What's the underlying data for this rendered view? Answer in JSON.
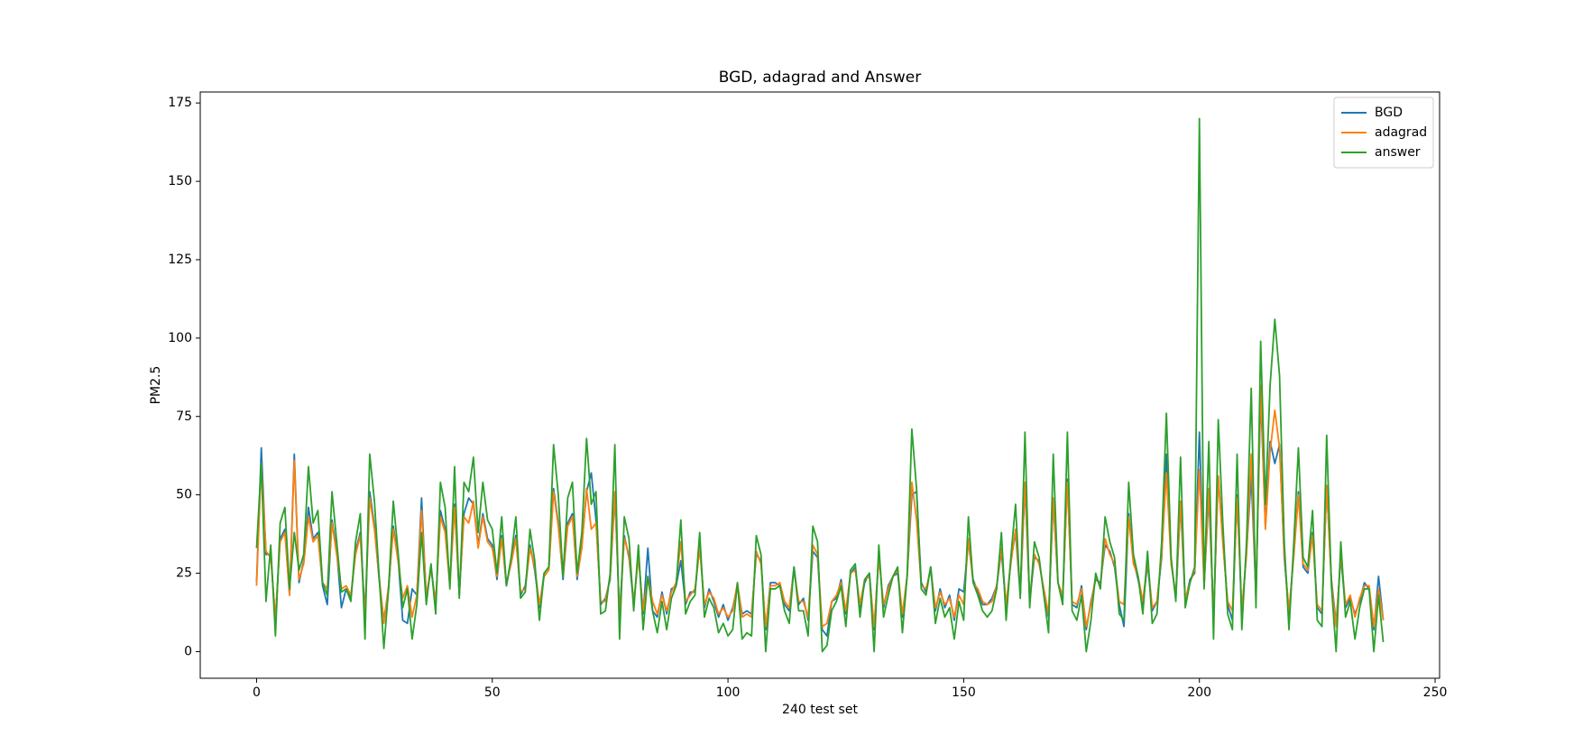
{
  "chart_data": {
    "type": "line",
    "title": "BGD, adagrad and Answer",
    "x_label": "240 test set",
    "y_label": "PM2.5",
    "xlim": [
      -11.95,
      250.95
    ],
    "ylim": [
      -8.5,
      178.5
    ],
    "xticks": [
      0,
      50,
      100,
      150,
      200,
      250
    ],
    "yticks": [
      0,
      25,
      50,
      75,
      100,
      125,
      150,
      175
    ],
    "legend": "upper right",
    "x": [
      0,
      1,
      2,
      3,
      4,
      5,
      6,
      7,
      8,
      9,
      10,
      11,
      12,
      13,
      14,
      15,
      16,
      17,
      18,
      19,
      20,
      21,
      22,
      23,
      24,
      25,
      26,
      27,
      28,
      29,
      30,
      31,
      32,
      33,
      34,
      35,
      36,
      37,
      38,
      39,
      40,
      41,
      42,
      43,
      44,
      45,
      46,
      47,
      48,
      49,
      50,
      51,
      52,
      53,
      54,
      55,
      56,
      57,
      58,
      59,
      60,
      61,
      62,
      63,
      64,
      65,
      66,
      67,
      68,
      69,
      70,
      71,
      72,
      73,
      74,
      75,
      76,
      77,
      78,
      79,
      80,
      81,
      82,
      83,
      84,
      85,
      86,
      87,
      88,
      89,
      90,
      91,
      92,
      93,
      94,
      95,
      96,
      97,
      98,
      99,
      100,
      101,
      102,
      103,
      104,
      105,
      106,
      107,
      108,
      109,
      110,
      111,
      112,
      113,
      114,
      115,
      116,
      117,
      118,
      119,
      120,
      121,
      122,
      123,
      124,
      125,
      126,
      127,
      128,
      129,
      130,
      131,
      132,
      133,
      134,
      135,
      136,
      137,
      138,
      139,
      140,
      141,
      142,
      143,
      144,
      145,
      146,
      147,
      148,
      149,
      150,
      151,
      152,
      153,
      154,
      155,
      156,
      157,
      158,
      159,
      160,
      161,
      162,
      163,
      164,
      165,
      166,
      167,
      168,
      169,
      170,
      171,
      172,
      173,
      174,
      175,
      176,
      177,
      178,
      179,
      180,
      181,
      182,
      183,
      184,
      185,
      186,
      187,
      188,
      189,
      190,
      191,
      192,
      193,
      194,
      195,
      196,
      197,
      198,
      199,
      200,
      201,
      202,
      203,
      204,
      205,
      206,
      207,
      208,
      209,
      210,
      211,
      212,
      213,
      214,
      215,
      216,
      217,
      218,
      219,
      220,
      221,
      222,
      223,
      224,
      225,
      226,
      227,
      228,
      229,
      230,
      231,
      232,
      233,
      234,
      235,
      236,
      237,
      238,
      239
    ],
    "series": [
      {
        "name": "BGD",
        "color": "#1f77b4",
        "values": [
          22,
          65,
          31,
          31,
          10,
          36,
          39,
          18,
          63,
          22,
          29,
          46,
          36,
          38,
          21,
          15,
          42,
          32,
          14,
          20,
          17,
          32,
          38,
          12,
          51,
          40,
          23,
          10,
          20,
          40,
          30,
          10,
          9,
          20,
          18,
          49,
          17,
          27,
          15,
          45,
          39,
          22,
          47,
          18,
          44,
          49,
          47,
          34,
          44,
          36,
          34,
          23,
          37,
          21,
          29,
          37,
          18,
          21,
          34,
          26,
          14,
          25,
          27,
          52,
          41,
          23,
          41,
          44,
          23,
          34,
          51,
          57,
          42,
          15,
          17,
          23,
          50,
          12,
          37,
          30,
          15,
          31,
          12,
          33,
          13,
          11,
          19,
          12,
          20,
          21,
          29,
          15,
          19,
          19,
          34,
          14,
          20,
          16,
          11,
          15,
          10,
          14,
          21,
          12,
          13,
          12,
          31,
          29,
          7,
          22,
          22,
          21,
          15,
          13,
          27,
          15,
          17,
          10,
          32,
          30,
          7,
          5,
          16,
          17,
          23,
          12,
          25,
          27,
          14,
          22,
          25,
          7,
          31,
          14,
          21,
          24,
          25,
          11,
          24,
          50,
          51,
          22,
          19,
          27,
          13,
          20,
          14,
          18,
          10,
          20,
          19,
          35,
          23,
          19,
          15,
          15,
          17,
          21,
          32,
          14,
          29,
          38,
          18,
          53,
          16,
          30,
          29,
          19,
          11,
          48,
          22,
          17,
          55,
          15,
          14,
          21,
          7,
          16,
          23,
          22,
          34,
          32,
          27,
          15,
          8,
          44,
          29,
          23,
          15,
          28,
          13,
          16,
          30,
          63,
          29,
          17,
          47,
          16,
          23,
          25,
          70,
          21,
          50,
          11,
          56,
          35,
          15,
          10,
          50,
          12,
          32,
          56,
          18,
          82,
          40,
          67,
          60,
          66,
          30,
          12,
          31,
          51,
          27,
          25,
          38,
          14,
          12,
          53,
          23,
          9,
          30,
          14,
          17,
          12,
          16,
          22,
          20,
          7,
          24,
          10
        ]
      },
      {
        "name": "adagrad",
        "color": "#ff7f0e",
        "values": [
          21,
          60,
          32,
          30,
          11,
          35,
          38,
          18,
          61,
          23,
          28,
          43,
          35,
          37,
          22,
          20,
          41,
          31,
          20,
          21,
          18,
          31,
          37,
          11,
          49,
          39,
          24,
          9,
          21,
          39,
          29,
          17,
          21,
          11,
          18,
          45,
          18,
          26,
          16,
          43,
          38,
          21,
          46,
          19,
          43,
          41,
          48,
          33,
          43,
          35,
          33,
          24,
          36,
          22,
          28,
          36,
          19,
          20,
          33,
          27,
          15,
          24,
          26,
          51,
          40,
          24,
          40,
          43,
          24,
          33,
          52,
          39,
          41,
          16,
          16,
          24,
          51,
          11,
          36,
          31,
          16,
          30,
          13,
          24,
          16,
          12,
          18,
          13,
          19,
          22,
          35,
          16,
          18,
          20,
          33,
          15,
          19,
          17,
          12,
          14,
          11,
          13,
          22,
          11,
          12,
          11,
          32,
          28,
          8,
          21,
          21,
          22,
          16,
          14,
          26,
          16,
          16,
          11,
          34,
          31,
          8,
          9,
          16,
          18,
          22,
          13,
          25,
          26,
          15,
          23,
          24,
          8,
          30,
          15,
          20,
          24,
          26,
          12,
          24,
          54,
          42,
          21,
          20,
          26,
          14,
          19,
          15,
          17,
          11,
          18,
          15,
          36,
          22,
          20,
          16,
          15,
          16,
          21,
          33,
          15,
          28,
          39,
          19,
          54,
          17,
          31,
          28,
          20,
          12,
          49,
          22,
          18,
          54,
          16,
          15,
          20,
          8,
          15,
          24,
          21,
          36,
          31,
          28,
          16,
          15,
          43,
          28,
          24,
          16,
          29,
          14,
          16,
          31,
          57,
          28,
          18,
          48,
          17,
          22,
          26,
          58,
          21,
          52,
          11,
          56,
          34,
          16,
          13,
          49,
          13,
          31,
          63,
          17,
          85,
          39,
          64,
          77,
          65,
          31,
          13,
          30,
          50,
          28,
          26,
          37,
          15,
          13,
          53,
          22,
          8,
          31,
          15,
          18,
          11,
          17,
          21,
          21,
          8,
          20,
          10
        ]
      },
      {
        "name": "answer",
        "color": "#2ca02c",
        "values": [
          33,
          60,
          16,
          34,
          5,
          41,
          46,
          20,
          38,
          26,
          31,
          59,
          41,
          45,
          22,
          18,
          51,
          35,
          19,
          20,
          16,
          35,
          44,
          4,
          63,
          48,
          24,
          1,
          20,
          48,
          32,
          14,
          20,
          4,
          15,
          38,
          15,
          28,
          12,
          54,
          46,
          20,
          59,
          17,
          54,
          51,
          62,
          38,
          54,
          42,
          39,
          25,
          43,
          21,
          30,
          43,
          17,
          19,
          39,
          29,
          10,
          25,
          27,
          66,
          50,
          24,
          49,
          54,
          25,
          38,
          68,
          47,
          51,
          12,
          13,
          25,
          66,
          4,
          43,
          36,
          13,
          34,
          7,
          24,
          13,
          6,
          16,
          7,
          17,
          21,
          42,
          12,
          16,
          18,
          38,
          11,
          17,
          14,
          6,
          9,
          5,
          7,
          22,
          4,
          6,
          5,
          37,
          31,
          0,
          20,
          20,
          21,
          13,
          9,
          27,
          13,
          13,
          5,
          40,
          35,
          0,
          2,
          13,
          16,
          21,
          8,
          26,
          28,
          11,
          23,
          25,
          0,
          34,
          11,
          18,
          24,
          27,
          6,
          24,
          71,
          52,
          20,
          18,
          27,
          9,
          17,
          11,
          14,
          4,
          16,
          10,
          43,
          22,
          18,
          13,
          11,
          13,
          20,
          38,
          10,
          30,
          47,
          17,
          70,
          14,
          35,
          30,
          18,
          6,
          63,
          22,
          15,
          70,
          13,
          10,
          18,
          0,
          10,
          25,
          20,
          43,
          35,
          30,
          12,
          10,
          54,
          31,
          24,
          12,
          32,
          9,
          12,
          35,
          76,
          30,
          16,
          62,
          14,
          22,
          27,
          170,
          20,
          67,
          4,
          74,
          40,
          12,
          7,
          63,
          7,
          35,
          84,
          14,
          99,
          47,
          85,
          106,
          88,
          35,
          7,
          34,
          65,
          30,
          27,
          45,
          10,
          8,
          69,
          21,
          0,
          35,
          11,
          16,
          4,
          14,
          20,
          20,
          0,
          18,
          3
        ]
      }
    ]
  }
}
